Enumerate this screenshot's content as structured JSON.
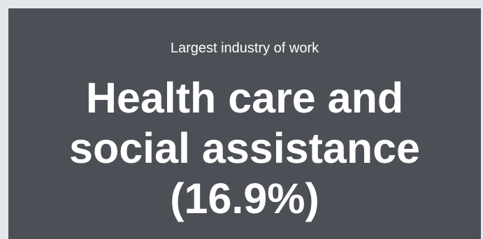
{
  "card": {
    "label": "Largest industry of work",
    "value_lines": [
      "Health care and",
      "social assistance",
      "(16.9%)"
    ],
    "colors": {
      "page_background": "#e3e7ec",
      "card_background": "#4c5056",
      "text": "#ffffff"
    }
  }
}
